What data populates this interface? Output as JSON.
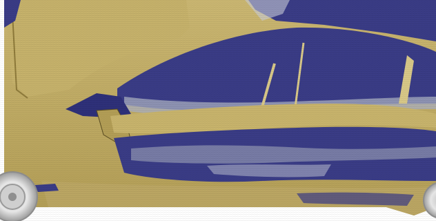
{
  "image": {
    "subject": "car-side-flow-visualization",
    "colors": {
      "background": "#ffffff",
      "gold": "#c2ad63",
      "gold_light": "#d8c888",
      "gold_dark": "#8e7a3a",
      "navy": "#3a3c86",
      "navy_dark": "#23256a",
      "gray_blue": "#a9afc0",
      "wheel_silver": "#d9d9d9"
    }
  }
}
